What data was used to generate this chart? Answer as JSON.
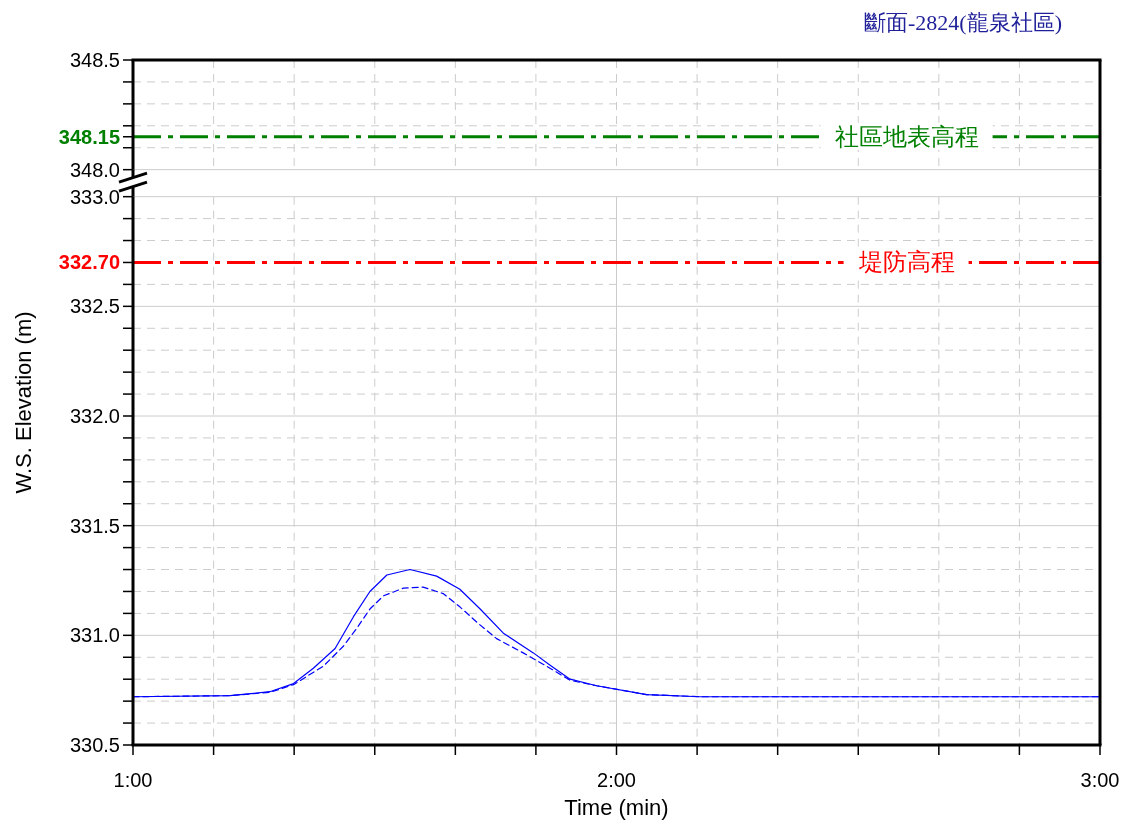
{
  "chart_data": [
    {
      "type": "line",
      "title": "斷面-2824(龍泉社區)",
      "xlim": [
        1,
        3
      ],
      "xticks": [
        {
          "value": 1,
          "label": null
        },
        {
          "value": 1.1667,
          "label": null
        },
        {
          "value": 1.3333,
          "label": null
        },
        {
          "value": 1.5,
          "label": null
        },
        {
          "value": 1.6667,
          "label": null
        },
        {
          "value": 1.8333,
          "label": null
        },
        {
          "value": 2,
          "label": null
        },
        {
          "value": 2.1667,
          "label": null
        },
        {
          "value": 2.3333,
          "label": null
        },
        {
          "value": 2.5,
          "label": null
        },
        {
          "value": 2.6667,
          "label": null
        },
        {
          "value": 2.8333,
          "label": null
        },
        {
          "value": 3,
          "label": null
        }
      ],
      "ylim": [
        348.0,
        348.5
      ],
      "yticks": [
        {
          "value": 348.0,
          "label": "348.0"
        },
        {
          "value": 348.1,
          "label": null
        },
        {
          "value": 348.15,
          "label": "348.15"
        },
        {
          "value": 348.2,
          "label": null
        },
        {
          "value": 348.3,
          "label": null
        },
        {
          "value": 348.4,
          "label": null
        },
        {
          "value": 348.5,
          "label": "348.5"
        }
      ],
      "ref_lines": [
        {
          "axis": "y",
          "value": 348.15,
          "label": "社區地表高程",
          "color": "#008000",
          "line_style": "dashed"
        }
      ],
      "grid": true,
      "tick_labels": "y"
    },
    {
      "type": "line",
      "xlabel": "Time (min)",
      "ylabel": "W.S. Elevation (m)",
      "xlim": [
        1,
        3
      ],
      "xticks": [
        {
          "value": 1,
          "label": "1:00"
        },
        {
          "value": 1.1667,
          "label": null
        },
        {
          "value": 1.3333,
          "label": null
        },
        {
          "value": 1.5,
          "label": null
        },
        {
          "value": 1.6667,
          "label": null
        },
        {
          "value": 1.8333,
          "label": null
        },
        {
          "value": 2,
          "label": "2:00"
        },
        {
          "value": 2.1667,
          "label": null
        },
        {
          "value": 2.3333,
          "label": null
        },
        {
          "value": 2.5,
          "label": null
        },
        {
          "value": 2.6667,
          "label": null
        },
        {
          "value": 2.8333,
          "label": null
        },
        {
          "value": 3,
          "label": "3:00"
        }
      ],
      "ylim": [
        330.5,
        333.0
      ],
      "yticks": [
        {
          "value": 330.5,
          "label": "330.5"
        },
        {
          "value": 330.6,
          "label": null
        },
        {
          "value": 330.7,
          "label": null
        },
        {
          "value": 330.8,
          "label": null
        },
        {
          "value": 330.9,
          "label": null
        },
        {
          "value": 331.0,
          "label": "331.0"
        },
        {
          "value": 331.1,
          "label": null
        },
        {
          "value": 331.2,
          "label": null
        },
        {
          "value": 331.3,
          "label": null
        },
        {
          "value": 331.4,
          "label": null
        },
        {
          "value": 331.5,
          "label": "331.5"
        },
        {
          "value": 331.6,
          "label": null
        },
        {
          "value": 331.7,
          "label": null
        },
        {
          "value": 331.8,
          "label": null
        },
        {
          "value": 331.9,
          "label": null
        },
        {
          "value": 332.0,
          "label": "332.0"
        },
        {
          "value": 332.1,
          "label": null
        },
        {
          "value": 332.2,
          "label": null
        },
        {
          "value": 332.3,
          "label": null
        },
        {
          "value": 332.4,
          "label": null
        },
        {
          "value": 332.5,
          "label": "332.5"
        },
        {
          "value": 332.6,
          "label": null
        },
        {
          "value": 332.7,
          "label": "332.70"
        },
        {
          "value": 332.8,
          "label": null
        },
        {
          "value": 332.9,
          "label": null
        },
        {
          "value": 333.0,
          "label": "333.0"
        }
      ],
      "ref_lines": [
        {
          "axis": "y",
          "value": 332.7,
          "label": "堤防高程",
          "color": "#ff0000",
          "line_style": "dashed"
        }
      ],
      "grid": true,
      "marker": "none",
      "series": [
        {
          "color": "#0000ff",
          "line_style": "solid",
          "x": [
            1,
            1.2006,
            1.283,
            1.332,
            1.373,
            1.418,
            1.456,
            1.49,
            1.525,
            1.573,
            1.628,
            1.676,
            1.718,
            1.766,
            1.828,
            1.862,
            1.904,
            1.959,
            2.062,
            2.173,
            3
          ],
          "values": [
            330.72,
            330.725,
            330.743,
            330.78,
            330.85,
            330.94,
            331.085,
            331.2,
            331.275,
            331.3,
            331.27,
            331.21,
            331.12,
            331.01,
            330.92,
            330.865,
            330.8,
            330.77,
            330.73,
            330.72,
            330.72
          ]
        },
        {
          "color": "#0000ff",
          "line_style": "dashed",
          "x": [
            1,
            1.2006,
            1.283,
            1.332,
            1.394,
            1.435,
            1.462,
            1.49,
            1.518,
            1.559,
            1.6,
            1.642,
            1.676,
            1.711,
            1.752,
            1.807,
            1.855,
            1.904,
            1.959,
            2.062,
            2.173,
            3
          ],
          "values": [
            330.72,
            330.725,
            330.74,
            330.775,
            330.86,
            330.95,
            331.03,
            331.12,
            331.18,
            331.215,
            331.22,
            331.19,
            331.13,
            331.06,
            330.985,
            330.92,
            330.86,
            330.795,
            330.77,
            330.73,
            330.72,
            330.72
          ]
        }
      ]
    }
  ]
}
